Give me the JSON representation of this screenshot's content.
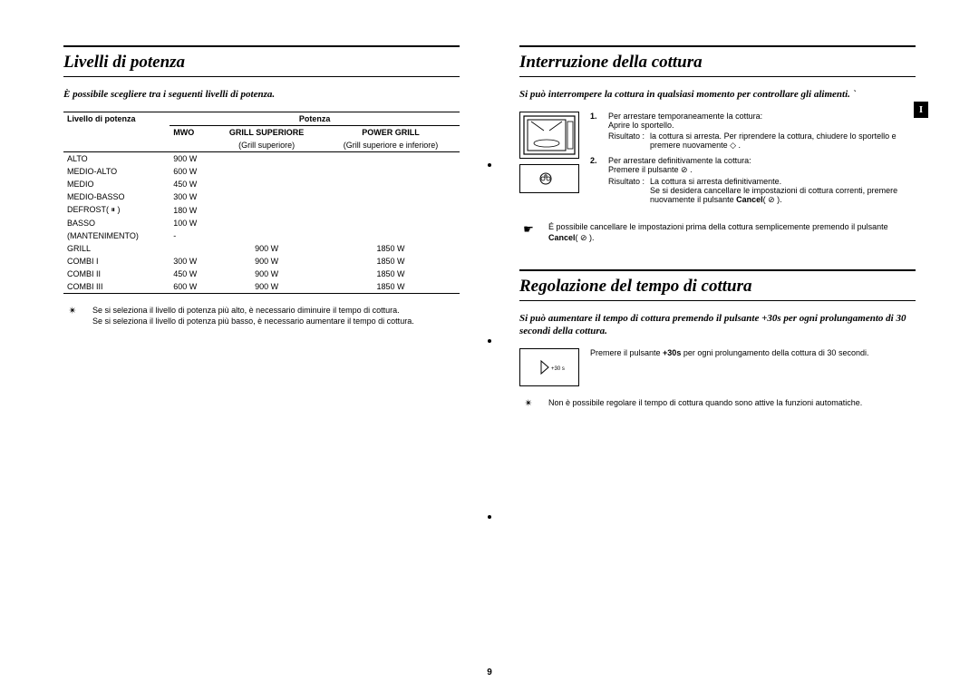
{
  "page_number": "9",
  "side_tab": "I",
  "left": {
    "title": "Livelli di potenza",
    "intro": "È possibile scegliere tra i seguenti livelli di potenza.",
    "table": {
      "header_level": "Livello di potenza",
      "header_power": "Potenza",
      "col_mwo": "MWO",
      "col_grill_sup": "GRILL SUPERIORE",
      "col_grill_sup_note": "(Grill superiore)",
      "col_power_grill": "POWER GRILL",
      "col_power_grill_note": "(Grill superiore e inferiore)",
      "rows": [
        {
          "lvl": "ALTO",
          "mwo": "900 W",
          "gs": "",
          "pg": ""
        },
        {
          "lvl": "MEDIO-ALTO",
          "mwo": "600 W",
          "gs": "",
          "pg": ""
        },
        {
          "lvl": "MEDIO",
          "mwo": "450 W",
          "gs": "",
          "pg": ""
        },
        {
          "lvl": "MEDIO-BASSO",
          "mwo": "300 W",
          "gs": "",
          "pg": ""
        },
        {
          "lvl": "DEFROST( ⏸ )",
          "mwo": "180 W",
          "gs": "",
          "pg": ""
        },
        {
          "lvl": "BASSO",
          "mwo": "100 W",
          "gs": "",
          "pg": ""
        },
        {
          "lvl": "(MANTENIMENTO)",
          "mwo": "-",
          "gs": "",
          "pg": ""
        },
        {
          "lvl": "GRILL",
          "mwo": "",
          "gs": "900 W",
          "pg": "1850 W"
        },
        {
          "lvl": "COMBI I",
          "mwo": "300 W",
          "gs": "900 W",
          "pg": "1850 W"
        },
        {
          "lvl": "COMBI II",
          "mwo": "450 W",
          "gs": "900 W",
          "pg": "1850 W"
        },
        {
          "lvl": "COMBI III",
          "mwo": "600 W",
          "gs": "900 W",
          "pg": "1850 W"
        }
      ]
    },
    "note_icon": "✴",
    "note": "Se si seleziona il livello di potenza più alto, è necessario diminuire il tempo di cottura.\nSe si seleziona il livello di potenza più basso, è necessario aumentare il tempo di cottura."
  },
  "right": {
    "sec1": {
      "title": "Interruzione della cottura",
      "intro": "Si può interrompere la cottura in qualsiasi momento per controllare gli alimenti.   `",
      "steps": {
        "s1_num": "1.",
        "s1_text": "Per arrestare temporaneamente la cottura:\nAprire lo sportello.",
        "s1_result_label": "Risultato :",
        "s1_result": "la cottura si arresta. Per riprendere la cottura, chiudere lo sportello e premere nuovamente ◇ .",
        "s2_num": "2.",
        "s2_text": "Per arrestare definitivamente la cottura:\nPremere il pulsante ⊘ .",
        "s2_result_label": "Risultato :",
        "s2_result": "La cottura si arresta definitivamente.\nSe si desidera cancellare le impostazioni di cottura correnti, premere nuovamente il pulsante ",
        "s2_result_bold": "Cancel",
        "s2_result_tail": "( ⊘ )."
      },
      "hand_note_pre": "É possibile cancellare le impostazioni prima della cottura semplicemente premendo il pulsante ",
      "hand_note_bold": "Cancel",
      "hand_note_tail": "( ⊘ )."
    },
    "sec2": {
      "title": "Regolazione del tempo di cottura",
      "intro": "Si può aumentare il tempo di cottura premendo il pulsante +30s per ogni prolungamento di 30 secondi della cottura.",
      "step_text_pre": "Premere il pulsante ",
      "step_text_bold": "+30s",
      "step_text_post": " per ogni prolungamento della cottura di 30 secondi.",
      "btn_label": "+30 s",
      "note_icon": "✴",
      "note": "Non è possibile regolare il tempo di cottura quando sono attive la funzioni automatiche."
    }
  }
}
